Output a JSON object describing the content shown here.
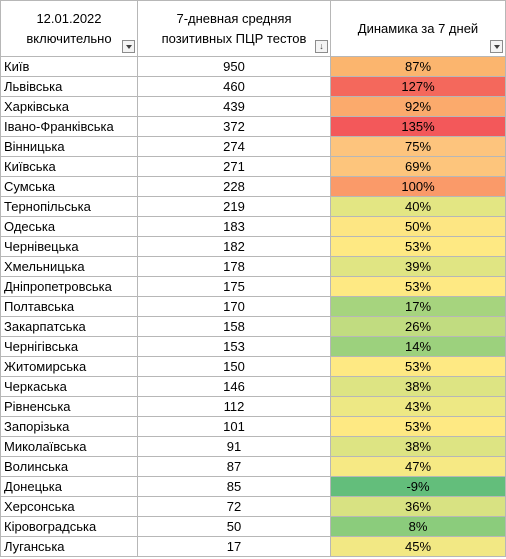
{
  "header": {
    "col1": [
      "12.01.2022",
      "включительно"
    ],
    "col2": [
      "7-дневная средняя",
      "позитивных ПЦР тестов"
    ],
    "col3": "Динамика за 7 дней"
  },
  "rows": [
    {
      "region": "Київ",
      "avg": "950",
      "dyn": "87%",
      "color": "#fbb56e"
    },
    {
      "region": "Львівська",
      "avg": "460",
      "dyn": "127%",
      "color": "#f4685c"
    },
    {
      "region": "Харківська",
      "avg": "439",
      "dyn": "92%",
      "color": "#fbaa6c"
    },
    {
      "region": "Івано-Франківська",
      "avg": "372",
      "dyn": "135%",
      "color": "#f3585a"
    },
    {
      "region": "Вінницька",
      "avg": "274",
      "dyn": "75%",
      "color": "#fdc47d"
    },
    {
      "region": "Київська",
      "avg": "271",
      "dyn": "69%",
      "color": "#fdc57c"
    },
    {
      "region": "Сумська",
      "avg": "228",
      "dyn": "100%",
      "color": "#fa9a69"
    },
    {
      "region": "Тернопільська",
      "avg": "219",
      "dyn": "40%",
      "color": "#e3e683"
    },
    {
      "region": "Одеська",
      "avg": "183",
      "dyn": "50%",
      "color": "#fde683"
    },
    {
      "region": "Чернівецька",
      "avg": "182",
      "dyn": "53%",
      "color": "#fee983"
    },
    {
      "region": "Хмельницька",
      "avg": "178",
      "dyn": "39%",
      "color": "#e0e583"
    },
    {
      "region": "Дніпропетровська",
      "avg": "175",
      "dyn": "53%",
      "color": "#fee983"
    },
    {
      "region": "Полтавська",
      "avg": "170",
      "dyn": "17%",
      "color": "#a6d47e"
    },
    {
      "region": "Закарпатська",
      "avg": "158",
      "dyn": "26%",
      "color": "#c1dc80"
    },
    {
      "region": "Чернігівська",
      "avg": "153",
      "dyn": "14%",
      "color": "#9cd17d"
    },
    {
      "region": "Житомирська",
      "avg": "150",
      "dyn": "53%",
      "color": "#fee983"
    },
    {
      "region": "Черкаська",
      "avg": "146",
      "dyn": "38%",
      "color": "#dde483"
    },
    {
      "region": "Рівненська",
      "avg": "112",
      "dyn": "43%",
      "color": "#ede884"
    },
    {
      "region": "Запорізька",
      "avg": "101",
      "dyn": "53%",
      "color": "#fee983"
    },
    {
      "region": "Миколаївська",
      "avg": "91",
      "dyn": "38%",
      "color": "#dde483"
    },
    {
      "region": "Волинська",
      "avg": "87",
      "dyn": "47%",
      "color": "#f6e984"
    },
    {
      "region": "Донецька",
      "avg": "85",
      "dyn": "-9%",
      "color": "#63be7b"
    },
    {
      "region": "Херсонська",
      "avg": "72",
      "dyn": "36%",
      "color": "#d8e282"
    },
    {
      "region": "Кіровоградська",
      "avg": "50",
      "dyn": "8%",
      "color": "#8bcc7c"
    },
    {
      "region": "Луганська",
      "avg": "17",
      "dyn": "45%",
      "color": "#f2e884"
    }
  ]
}
